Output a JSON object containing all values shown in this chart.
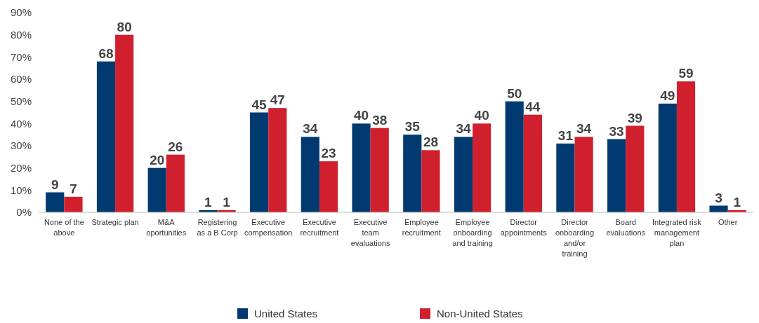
{
  "chart_data": {
    "type": "bar",
    "categories": [
      "None of the above",
      "Strategic plan",
      "M&A oportunities",
      "Registering as a B Corp",
      "Executive compensation",
      "Executive recruitment",
      "Executive team evaluations",
      "Employee recruitment",
      "Employee onboarding and training",
      "Director appointments",
      "Director onboarding and/or training",
      "Board evaluations",
      "Integrated risk management plan",
      "Other"
    ],
    "series": [
      {
        "name": "United States",
        "color": "#003a70",
        "values": [
          9,
          68,
          20,
          1,
          45,
          34,
          40,
          35,
          34,
          50,
          31,
          33,
          49,
          3
        ]
      },
      {
        "name": "Non-United States",
        "color": "#d0202e",
        "values": [
          7,
          80,
          26,
          1,
          47,
          23,
          38,
          28,
          40,
          44,
          34,
          39,
          59,
          1
        ]
      }
    ],
    "ylim": [
      0,
      90
    ],
    "yticks": [
      {
        "value": 0,
        "label": "0%"
      },
      {
        "value": 10,
        "label": "10%"
      },
      {
        "value": 20,
        "label": "20%"
      },
      {
        "value": 30,
        "label": "30%"
      },
      {
        "value": 40,
        "label": "40%"
      },
      {
        "value": 50,
        "label": "50%"
      },
      {
        "value": 60,
        "label": "60%"
      },
      {
        "value": 70,
        "label": "70%"
      },
      {
        "value": 80,
        "label": "80%"
      },
      {
        "value": 90,
        "label": "90%"
      }
    ],
    "data_labels": true,
    "grid": false,
    "legend": "bottom"
  }
}
